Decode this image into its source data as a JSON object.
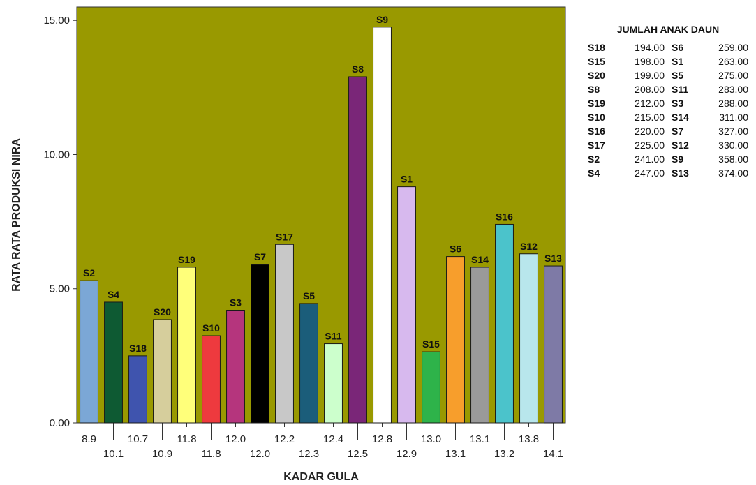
{
  "chart_data": {
    "type": "bar",
    "xlabel": "KADAR GULA",
    "ylabel": "RATA RATA PRODUKSI NIRA",
    "ylim": [
      0,
      15.5
    ],
    "y_ticks": [
      "0.00",
      "5.00",
      "10.00",
      "15.00"
    ],
    "y_tick_values": [
      0,
      5,
      10,
      15
    ],
    "plot_background": "#999900",
    "categories": [
      "8.9",
      "10.1",
      "10.7",
      "10.9",
      "11.8",
      "11.8",
      "12.0",
      "12.0",
      "12.2",
      "12.3",
      "12.4",
      "12.5",
      "12.8",
      "12.9",
      "13.0",
      "13.1",
      "13.1",
      "13.2",
      "13.8",
      "14.1"
    ],
    "bar_labels": [
      "S2",
      "S4",
      "S18",
      "S20",
      "S19",
      "S10",
      "S3",
      "S7",
      "S17",
      "S5",
      "S11",
      "S8",
      "S9",
      "S1",
      "S15",
      "S6",
      "S14",
      "S16",
      "S12",
      "S13"
    ],
    "values": [
      5.3,
      4.5,
      2.5,
      3.85,
      5.8,
      3.25,
      4.2,
      5.9,
      6.65,
      4.45,
      2.95,
      12.9,
      14.75,
      8.8,
      2.65,
      6.2,
      5.8,
      7.4,
      6.3,
      5.85
    ],
    "colors": [
      "#7BA7D6",
      "#0E5A33",
      "#3F54AE",
      "#D6CE9C",
      "#FFFF7A",
      "#EE3A3E",
      "#B5357D",
      "#000000",
      "#C8C8C8",
      "#1B5D7A",
      "#CCFFCC",
      "#7A2678",
      "#FFFFFF",
      "#D7B9EE",
      "#2EB34A",
      "#F79E2C",
      "#9A9A9A",
      "#4BC3CB",
      "#B8E6EC",
      "#7E7AA6"
    ]
  },
  "legend": {
    "title": "JUMLAH ANAK DAUN",
    "left": [
      {
        "key": "S18",
        "value": "194.00"
      },
      {
        "key": "S15",
        "value": "198.00"
      },
      {
        "key": "S20",
        "value": "199.00"
      },
      {
        "key": "S8",
        "value": "208.00"
      },
      {
        "key": "S19",
        "value": "212.00"
      },
      {
        "key": "S10",
        "value": "215.00"
      },
      {
        "key": "S16",
        "value": "220.00"
      },
      {
        "key": "S17",
        "value": "225.00"
      },
      {
        "key": "S2",
        "value": "241.00"
      },
      {
        "key": "S4",
        "value": "247.00"
      }
    ],
    "right": [
      {
        "key": "S6",
        "value": "259.00"
      },
      {
        "key": "S1",
        "value": "263.00"
      },
      {
        "key": "S5",
        "value": "275.00"
      },
      {
        "key": "S11",
        "value": "283.00"
      },
      {
        "key": "S3",
        "value": "288.00"
      },
      {
        "key": "S14",
        "value": "311.00"
      },
      {
        "key": "S7",
        "value": "327.00"
      },
      {
        "key": "S12",
        "value": "330.00"
      },
      {
        "key": "S9",
        "value": "358.00"
      },
      {
        "key": "S13",
        "value": "374.00"
      }
    ]
  }
}
